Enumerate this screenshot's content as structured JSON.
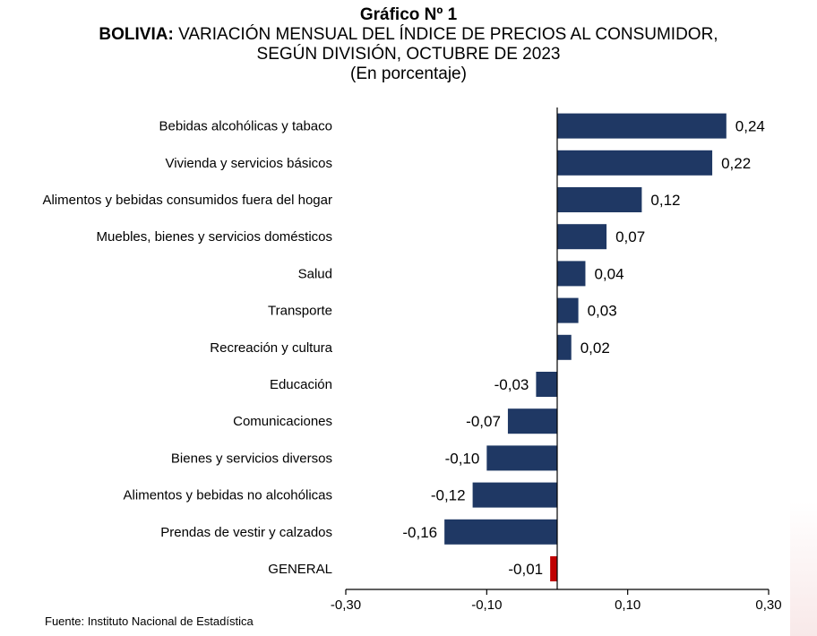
{
  "header": {
    "title": "Gráfico Nº 1",
    "line2_bold": "BOLIVIA:",
    "line2_rest": " VARIACIÓN MENSUAL DEL ÍNDICE DE PRECIOS AL CONSUMIDOR,",
    "line3": "SEGÚN DIVISIÓN, OCTUBRE DE 2023",
    "line4": "(En porcentaje)"
  },
  "source": "Fuente: Instituto Nacional de Estadística",
  "colors": {
    "bar": "#1f3864",
    "highlight": "#c00000",
    "axis": "#000000"
  },
  "chart_data": {
    "type": "bar",
    "orientation": "horizontal",
    "categories": [
      "Bebidas alcohólicas y tabaco",
      "Vivienda y servicios básicos",
      "Alimentos y bebidas consumidos fuera del hogar",
      "Muebles, bienes y servicios domésticos",
      "Salud",
      "Transporte",
      "Recreación y cultura",
      "Educación",
      "Comunicaciones",
      "Bienes y servicios diversos",
      "Alimentos y bebidas no alcohólicas",
      "Prendas de vestir y calzados",
      "GENERAL"
    ],
    "values": [
      0.24,
      0.22,
      0.12,
      0.07,
      0.04,
      0.03,
      0.02,
      -0.03,
      -0.07,
      -0.1,
      -0.12,
      -0.16,
      -0.01
    ],
    "value_labels": [
      "0,24",
      "0,22",
      "0,12",
      "0,07",
      "0,04",
      "0,03",
      "0,02",
      "-0,03",
      "-0,07",
      "-0,10",
      "-0,12",
      "-0,16",
      "-0,01"
    ],
    "highlight_category": "GENERAL",
    "xlim": [
      -0.3,
      0.3
    ],
    "xticks": [
      -0.3,
      -0.1,
      0.1,
      0.3
    ],
    "xtick_labels": [
      "-0,30",
      "-0,10",
      "0,10",
      "0,30"
    ],
    "grid": false,
    "legend": "none"
  }
}
